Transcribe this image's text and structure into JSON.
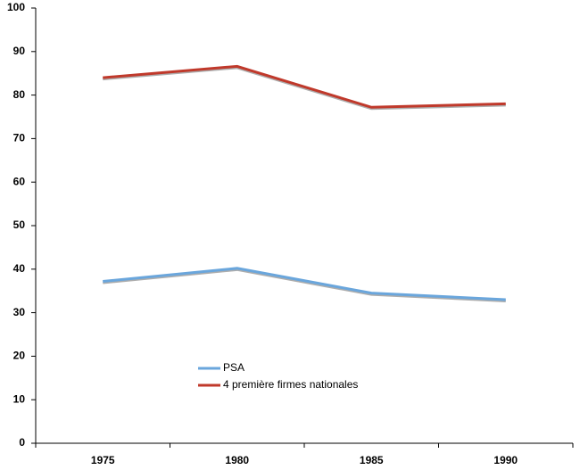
{
  "chart_data": {
    "type": "line",
    "categories": [
      "1975",
      "1980",
      "1985",
      "1990"
    ],
    "series": [
      {
        "name": "PSA",
        "color": "#6aa6dc",
        "values": [
          37.2,
          40.2,
          34.5,
          33.0
        ]
      },
      {
        "name": "4 première firmes nationales",
        "color": "#c0392b",
        "values": [
          84.0,
          86.6,
          77.2,
          78.0
        ]
      }
    ],
    "ylim": [
      0,
      100
    ],
    "yticks": [
      0,
      10,
      20,
      30,
      40,
      50,
      60,
      70,
      80,
      90,
      100
    ]
  }
}
